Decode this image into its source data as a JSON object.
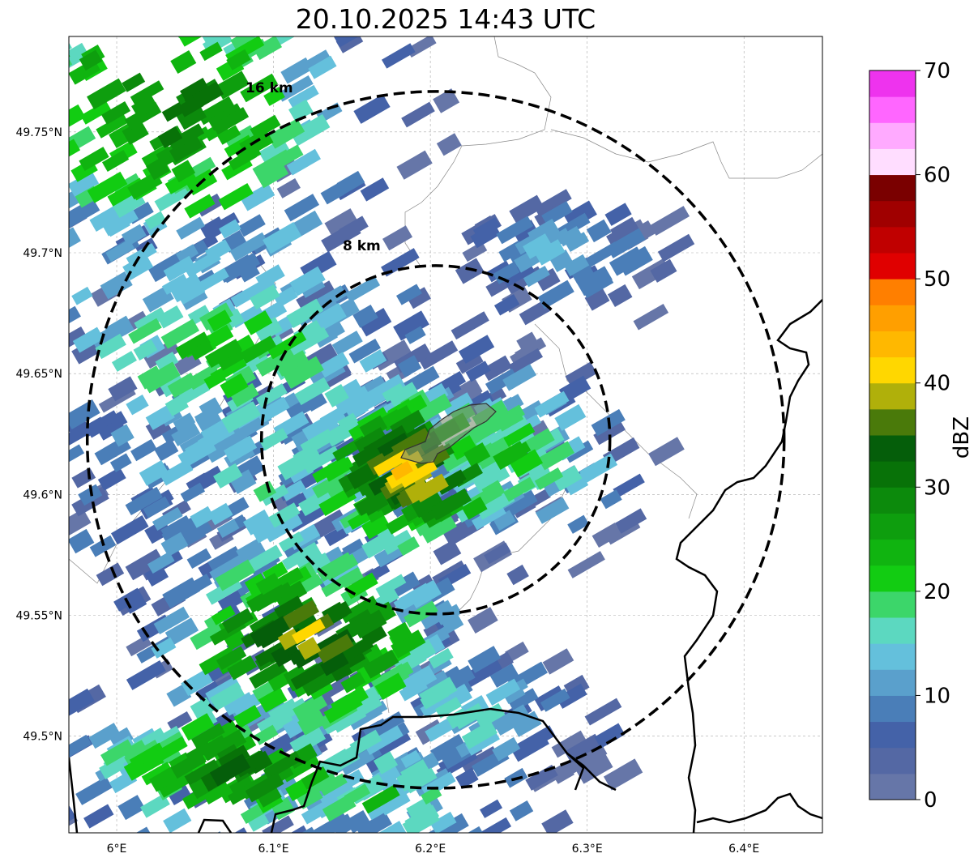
{
  "title": "20.10.2025 14:43 UTC",
  "axes": {
    "lon_ticks": [
      {
        "value": 6.0,
        "label": "6°E"
      },
      {
        "value": 6.1,
        "label": "6.1°E"
      },
      {
        "value": 6.2,
        "label": "6.2°E"
      },
      {
        "value": 6.3,
        "label": "6.3°E"
      },
      {
        "value": 6.4,
        "label": "6.4°E"
      }
    ],
    "lat_ticks": [
      {
        "value": 49.75,
        "label": "49.75°N"
      },
      {
        "value": 49.7,
        "label": "49.7°N"
      },
      {
        "value": 49.65,
        "label": "49.65°N"
      },
      {
        "value": 49.6,
        "label": "49.6°N"
      },
      {
        "value": 49.55,
        "label": "49.55°N"
      },
      {
        "value": 49.5,
        "label": "49.5°N"
      }
    ],
    "lon_range": [
      5.9695,
      6.45
    ],
    "lat_range": [
      49.46,
      49.7895
    ]
  },
  "range_rings": {
    "center": {
      "lon": 6.2034,
      "lat": 49.6226
    },
    "rings": [
      {
        "km": 8,
        "label": "8 km"
      },
      {
        "km": 16,
        "label": "16 km"
      }
    ]
  },
  "colorbar": {
    "label": "dBZ",
    "min": 0,
    "max": 70,
    "step": 2.5,
    "ticks": [
      "0",
      "10",
      "20",
      "30",
      "40",
      "50",
      "60",
      "70"
    ],
    "colors": [
      "#6676a8",
      "#5468a4",
      "#4462a8",
      "#4a7eb8",
      "#5aa0cc",
      "#64c0dc",
      "#5cd8c0",
      "#3cd66a",
      "#12cc12",
      "#10b410",
      "#0e9e0e",
      "#0c8a0c",
      "#087208",
      "#055e0a",
      "#4a7a0a",
      "#b0b00a",
      "#ffd700",
      "#ffb800",
      "#ff9f00",
      "#ff7f00",
      "#e00000",
      "#c00000",
      "#a00000",
      "#7a0000",
      "#ffddff",
      "#ffaaff",
      "#ff66ff",
      "#ee33ee"
    ]
  },
  "echo_regions": [
    {
      "lon": 6.03,
      "lat": 49.76,
      "slon": 0.07,
      "slat": 0.035,
      "peak": 32,
      "n": 260
    },
    {
      "lon": 6.07,
      "lat": 49.66,
      "slon": 0.08,
      "slat": 0.03,
      "peak": 22,
      "n": 260
    },
    {
      "lon": 6.1,
      "lat": 49.6,
      "slon": 0.08,
      "slat": 0.03,
      "peak": 16,
      "n": 220
    },
    {
      "lon": 6.187,
      "lat": 49.61,
      "slon": 0.035,
      "slat": 0.018,
      "peak": 44,
      "n": 180
    },
    {
      "lon": 6.25,
      "lat": 49.617,
      "slon": 0.04,
      "slat": 0.02,
      "peak": 22,
      "n": 130
    },
    {
      "lon": 6.122,
      "lat": 49.54,
      "slon": 0.05,
      "slat": 0.02,
      "peak": 40,
      "n": 220
    },
    {
      "lon": 6.08,
      "lat": 49.486,
      "slon": 0.06,
      "slat": 0.018,
      "peak": 32,
      "n": 160
    },
    {
      "lon": 6.17,
      "lat": 49.475,
      "slon": 0.06,
      "slat": 0.012,
      "peak": 20,
      "n": 90
    },
    {
      "lon": 6.28,
      "lat": 49.7,
      "slon": 0.035,
      "slat": 0.012,
      "peak": 13,
      "n": 80
    },
    {
      "lon": 6.21,
      "lat": 49.51,
      "slon": 0.05,
      "slat": 0.015,
      "peak": 16,
      "n": 100
    }
  ]
}
